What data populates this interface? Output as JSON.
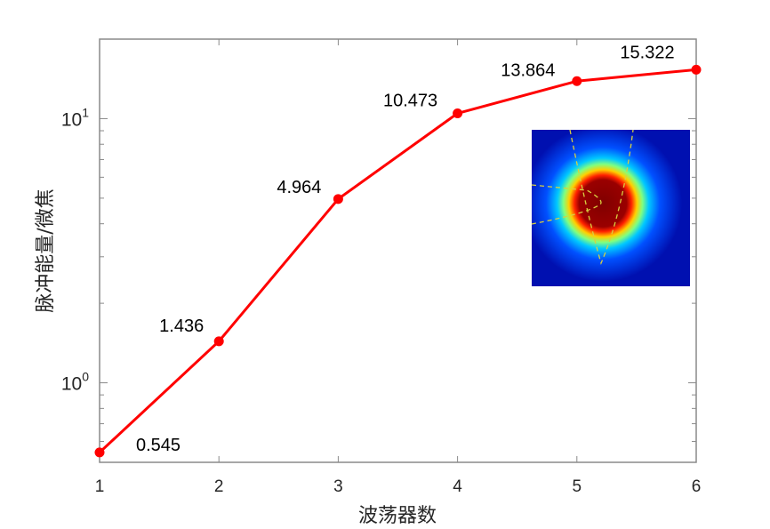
{
  "chart_data": {
    "type": "line",
    "title": "",
    "xlabel": "波荡器数",
    "ylabel": "脉冲能量/微焦",
    "x": [
      1,
      2,
      3,
      4,
      5,
      6
    ],
    "series": [
      {
        "values": [
          0.545,
          1.436,
          4.964,
          10.473,
          13.864,
          15.322
        ],
        "color": "#ff0000",
        "marker": "circle"
      }
    ],
    "data_labels": [
      "0.545",
      "1.436",
      "4.964",
      "10.473",
      "13.864",
      "15.322"
    ],
    "xlim": [
      1,
      6
    ],
    "ylim": [
      0.5,
      20
    ],
    "yscale": "log",
    "xticks": [
      "1",
      "2",
      "3",
      "4",
      "5",
      "6"
    ],
    "yticks": [
      {
        "value": 1,
        "base": "10",
        "exp": "0"
      },
      {
        "value": 10,
        "base": "10",
        "exp": "1"
      }
    ],
    "grid": false,
    "legend": "none",
    "inset": "beam spot intensity image (jet colormap) with dashed yellow contour lines"
  }
}
